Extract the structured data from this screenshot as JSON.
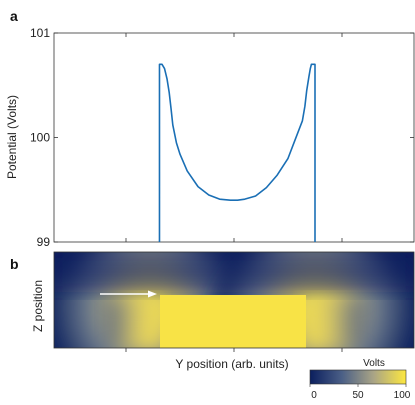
{
  "panels": {
    "a": "a",
    "b": "b"
  },
  "chart_data": [
    {
      "type": "line",
      "panel": "a",
      "xlabel": "",
      "ylabel": "Potential (Volts)",
      "xlim": [
        0,
        1
      ],
      "ylim": [
        99,
        101
      ],
      "yticks": [
        99,
        100,
        101
      ],
      "ytick_labels": [
        "99",
        "100",
        "101"
      ],
      "line_color": "#1a6fb5",
      "series": [
        {
          "x": [
            0.293,
            0.293,
            0.3,
            0.307,
            0.314,
            0.32,
            0.325,
            0.33,
            0.34,
            0.35,
            0.37,
            0.4,
            0.43,
            0.46,
            0.49,
            0.51,
            0.53,
            0.56,
            0.59,
            0.62,
            0.65,
            0.67,
            0.69,
            0.697,
            0.702,
            0.708,
            0.712,
            0.715,
            0.72,
            0.725,
            0.725
          ],
          "y": [
            99.0,
            100.7,
            100.7,
            100.66,
            100.56,
            100.43,
            100.28,
            100.12,
            99.95,
            99.84,
            99.68,
            99.53,
            99.45,
            99.41,
            99.4,
            99.4,
            99.41,
            99.44,
            99.52,
            99.64,
            99.8,
            99.98,
            100.16,
            100.3,
            100.45,
            100.58,
            100.66,
            100.7,
            100.7,
            100.7,
            99.0
          ]
        }
      ]
    },
    {
      "type": "heatmap",
      "panel": "b",
      "xlabel": "Y position (arb. units)",
      "ylabel": "Z position",
      "description_of_field": "Potential map: yellow (~100 V) electrode bar in lower middle, dark blue (~0 V) elsewhere with smooth gradients at the ends",
      "arrow_color": "#ffffff"
    }
  ],
  "colorbar": {
    "title": "Volts",
    "ticks": [
      "0",
      "50",
      "100"
    ],
    "range": [
      0,
      100
    ],
    "colors": [
      "#0b1f5e",
      "#5a6e8c",
      "#b3ad7a",
      "#fde840"
    ]
  }
}
